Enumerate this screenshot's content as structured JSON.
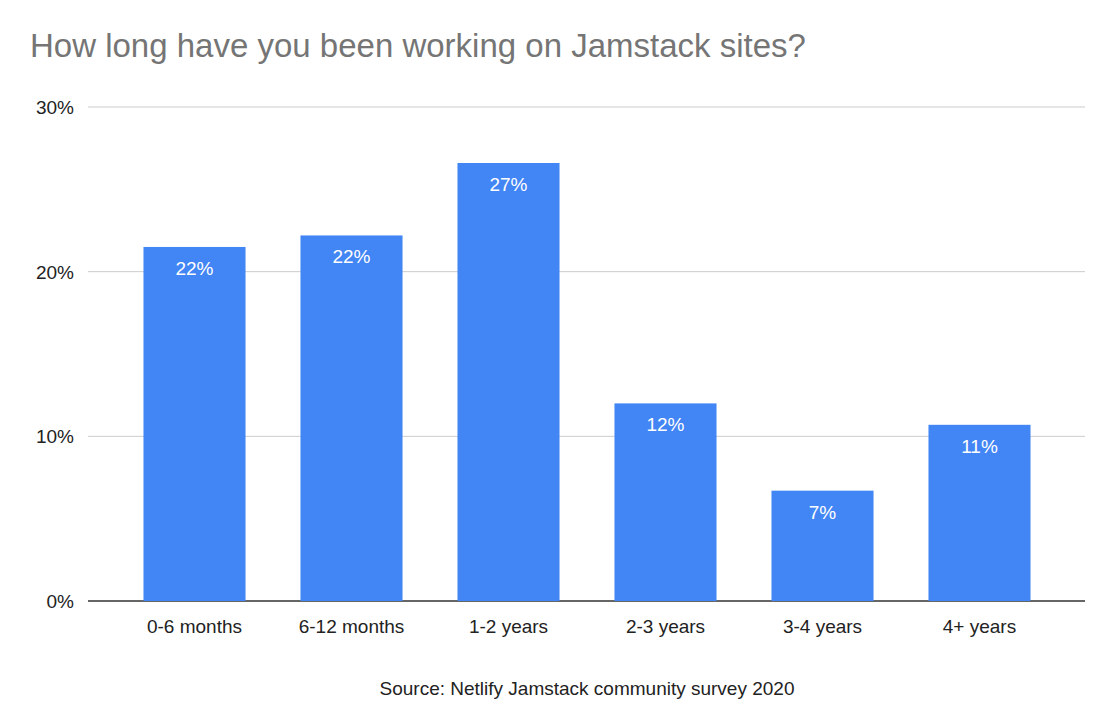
{
  "chart_data": {
    "type": "bar",
    "title": "How long have you been working on Jamstack sites?",
    "categories": [
      "0-6 months",
      "6-12 months",
      "1-2 years",
      "2-3 years",
      "3-4 years",
      "4+ years"
    ],
    "values": [
      21.5,
      22.2,
      26.6,
      12.0,
      6.7,
      10.7
    ],
    "value_labels": [
      "22%",
      "22%",
      "27%",
      "12%",
      "7%",
      "11%"
    ],
    "color": "#4285f4",
    "ylim": [
      0,
      30
    ],
    "yticks": [
      {
        "value": 0,
        "label": "0%"
      },
      {
        "value": 10,
        "label": "10%"
      },
      {
        "value": 20,
        "label": "20%"
      },
      {
        "value": 30,
        "label": "30%"
      }
    ],
    "grid": true,
    "data_labels": true,
    "annotations": [
      "Source: Netlify Jamstack community survey 2020"
    ]
  }
}
